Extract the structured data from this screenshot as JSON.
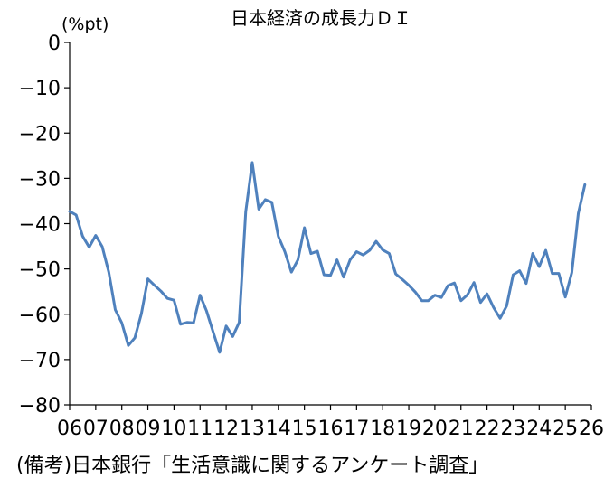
{
  "chart_data": {
    "type": "line",
    "title": "日本経済の成長力ＤＩ",
    "ylabel": "(%pt)",
    "xlabel": "",
    "ylim": [
      -80,
      0
    ],
    "yticks": [
      0,
      -10,
      -20,
      -30,
      -40,
      -50,
      -60,
      -70,
      -80
    ],
    "xlim": [
      2006,
      2026
    ],
    "xticks": [
      2006,
      2007,
      2008,
      2009,
      2010,
      2011,
      2012,
      2013,
      2014,
      2015,
      2016,
      2017,
      2018,
      2019,
      2020,
      2021,
      2022,
      2023,
      2024,
      2025,
      2026
    ],
    "xtick_labels": [
      "06",
      "07",
      "08",
      "09",
      "10",
      "11",
      "12",
      "13",
      "14",
      "15",
      "16",
      "17",
      "18",
      "19",
      "20",
      "21",
      "22",
      "23",
      "24",
      "25",
      "26"
    ],
    "grid": false,
    "legend": "none",
    "colors": {
      "line": "#4f81bd",
      "axis": "#000000"
    },
    "series": [
      {
        "x": [
          2006.0,
          2006.25,
          2006.5,
          2006.75,
          2007.0,
          2007.25,
          2007.5,
          2007.75,
          2008.0,
          2008.25,
          2008.5,
          2008.75,
          2009.0,
          2009.25,
          2009.5,
          2009.75,
          2010.0,
          2010.25,
          2010.5,
          2010.75,
          2011.0,
          2011.25,
          2011.5,
          2011.75,
          2012.0,
          2012.25,
          2012.5,
          2012.75,
          2013.0,
          2013.25,
          2013.5,
          2013.75,
          2014.0,
          2014.25,
          2014.5,
          2014.75,
          2015.0,
          2015.25,
          2015.5,
          2015.75,
          2016.0,
          2016.25,
          2016.5,
          2016.75,
          2017.0,
          2017.25,
          2017.5,
          2017.75,
          2018.0,
          2018.25,
          2018.5,
          2018.75,
          2019.0,
          2019.25,
          2019.5,
          2019.75,
          2020.0,
          2020.25,
          2020.5,
          2020.75,
          2021.0,
          2021.25,
          2021.5,
          2021.75,
          2022.0,
          2022.25,
          2022.5,
          2022.75,
          2023.0,
          2023.25,
          2023.5,
          2023.75,
          2024.0,
          2024.25,
          2024.5,
          2024.75,
          2025.0,
          2025.25,
          2025.5,
          2025.75
        ],
        "values": [
          -37.3,
          -38.1,
          -42.8,
          -45.2,
          -42.6,
          -45.1,
          -50.7,
          -59.0,
          -61.9,
          -66.9,
          -65.2,
          -59.9,
          -52.2,
          -53.6,
          -54.9,
          -56.5,
          -56.9,
          -62.2,
          -61.8,
          -61.9,
          -55.8,
          -59.3,
          -63.9,
          -68.4,
          -62.6,
          -64.9,
          -61.8,
          -37.4,
          -26.5,
          -36.8,
          -34.7,
          -35.3,
          -42.8,
          -46.2,
          -50.7,
          -48.0,
          -40.9,
          -46.6,
          -46.1,
          -51.3,
          -51.4,
          -48.0,
          -51.8,
          -48.0,
          -46.2,
          -46.9,
          -45.9,
          -43.9,
          -45.8,
          -46.6,
          -51.1,
          -52.3,
          -53.6,
          -55.1,
          -57.0,
          -57.0,
          -55.8,
          -56.3,
          -53.7,
          -53.1,
          -57.0,
          -55.7,
          -53.0,
          -57.4,
          -55.5,
          -58.5,
          -60.9,
          -58.2,
          -51.3,
          -50.4,
          -53.2,
          -46.6,
          -49.5,
          -45.9,
          -51.0,
          -51.0,
          -56.2,
          -50.8,
          -37.7,
          -31.4
        ]
      }
    ]
  },
  "source_note": "(備考)日本銀行「生活意識に関するアンケート調査」"
}
